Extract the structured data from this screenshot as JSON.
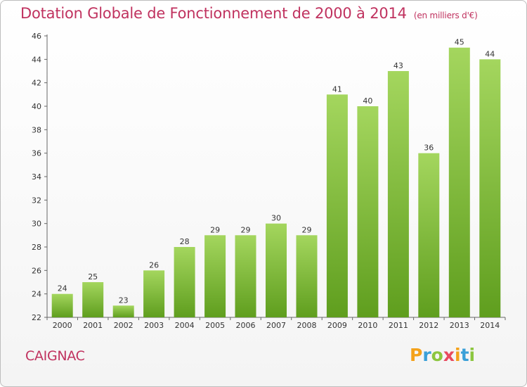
{
  "chart_data": {
    "type": "bar",
    "title": "Dotation Globale de Fonctionnement de 2000 à 2014",
    "subtitle": "(en milliers d'€)",
    "categories": [
      "2000",
      "2001",
      "2002",
      "2003",
      "2004",
      "2005",
      "2006",
      "2007",
      "2008",
      "2009",
      "2010",
      "2011",
      "2012",
      "2013",
      "2014"
    ],
    "values": [
      24,
      25,
      23,
      26,
      28,
      29,
      29,
      30,
      29,
      41,
      40,
      43,
      36,
      45,
      44
    ],
    "ylim": [
      22,
      46
    ],
    "yticks": [
      22,
      24,
      26,
      28,
      30,
      32,
      34,
      36,
      38,
      40,
      42,
      44,
      46
    ],
    "xlabel": "",
    "ylabel": "",
    "grid": false,
    "bar_color": "#7ab733"
  },
  "commune": "CAIGNAC",
  "logo": {
    "letters": [
      "P",
      "r",
      "o",
      "x",
      "i",
      "t",
      "i"
    ],
    "colors": [
      "#f4a21a",
      "#3aa0d8",
      "#8cc63f",
      "#e84a5f",
      "#f4a21a",
      "#3aa0d8",
      "#8cc63f"
    ]
  }
}
